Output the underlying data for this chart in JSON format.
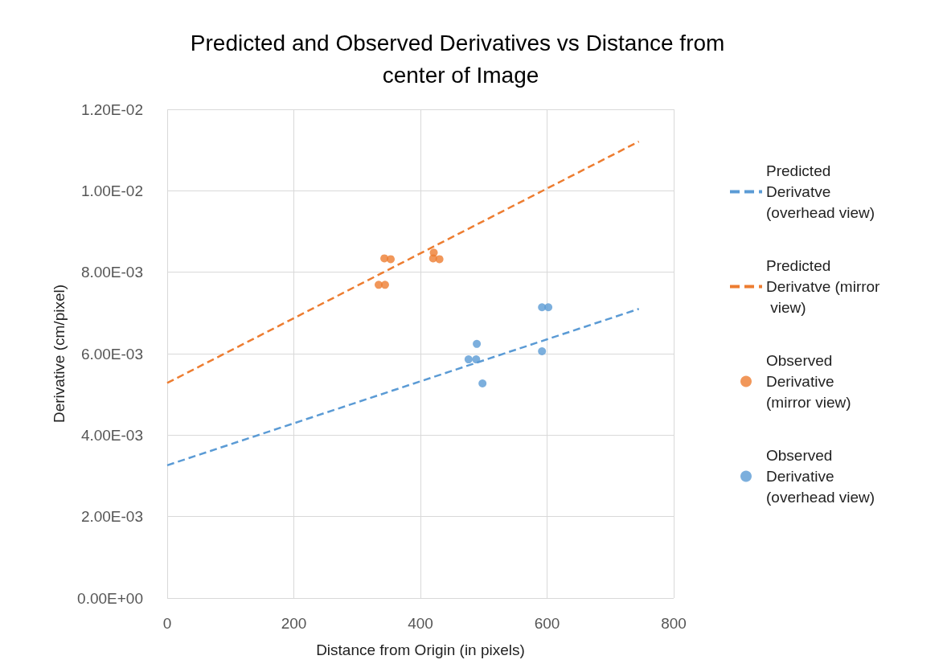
{
  "chart_data": {
    "type": "scatter",
    "title": "Predicted and Observed Derivatives vs Distance from center of Image",
    "xlabel": "Distance from Origin (in pixels)",
    "ylabel": "Derivative (cm/pixel)",
    "xlim": [
      0,
      800
    ],
    "xticks": [
      0,
      200,
      400,
      600,
      800
    ],
    "ylim": [
      0,
      0.012
    ],
    "yticks": [
      {
        "value": 0,
        "label": "0.00E+00"
      },
      {
        "value": 0.002,
        "label": "2.00E-03"
      },
      {
        "value": 0.004,
        "label": "4.00E-03"
      },
      {
        "value": 0.006,
        "label": "6.00E-03"
      },
      {
        "value": 0.008,
        "label": "8.00E-03"
      },
      {
        "value": 0.01,
        "label": "1.00E-02"
      },
      {
        "value": 0.012,
        "label": "1.20E-02"
      }
    ],
    "grid": true,
    "legend": "right",
    "series": [
      {
        "name": "Predicted Derivatve (overhead view)",
        "type": "line",
        "line_style": "dashed",
        "marker": "none",
        "color": "#5b9bd5",
        "x": [
          0,
          745
        ],
        "values": [
          0.00326,
          0.0071
        ]
      },
      {
        "name": "Predicted Derivatve (mirror view)",
        "type": "line",
        "line_style": "dashed",
        "marker": "none",
        "color": "#ed7d31",
        "x": [
          0,
          745
        ],
        "values": [
          0.00528,
          0.01121
        ]
      },
      {
        "name": "Observed Derivative (mirror view)",
        "type": "scatter",
        "marker": "circle",
        "color": "#ed7d31",
        "x": [
          334,
          344,
          343,
          353,
          421,
          420,
          430
        ],
        "values": [
          0.00769,
          0.00769,
          0.00834,
          0.00832,
          0.00848,
          0.00834,
          0.00832
        ]
      },
      {
        "name": "Observed Derivative (overhead view)",
        "type": "scatter",
        "marker": "circle",
        "color": "#5b9bd5",
        "x": [
          476,
          488,
          489,
          498,
          592,
          602,
          592
        ],
        "values": [
          0.00586,
          0.00586,
          0.00624,
          0.00527,
          0.00714,
          0.00714,
          0.00606
        ]
      }
    ]
  }
}
